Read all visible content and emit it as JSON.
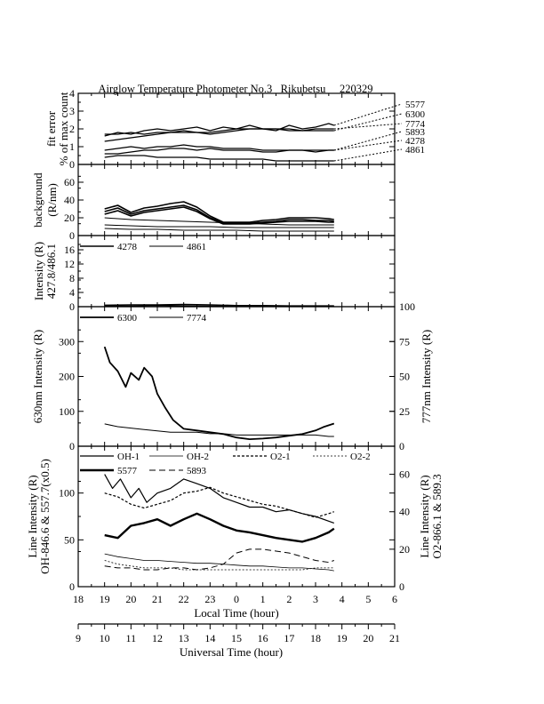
{
  "title": "Airglow Temperature Photometer No.3   Rikubetsu     220329",
  "chart_data": [
    {
      "type": "line",
      "panel": "fit-error",
      "ylabel": [
        "fit error",
        "% of max count"
      ],
      "ylim": [
        0,
        4
      ],
      "yticks": [
        "0",
        "1",
        "2",
        "3",
        "4"
      ],
      "series": [
        {
          "name": "5577",
          "x": [
            19.0,
            19.5,
            20.0,
            20.5,
            21.0,
            21.5,
            22.0,
            22.5,
            23.0,
            23.5,
            24.0,
            24.5,
            25.0,
            25.5,
            26.0,
            26.5,
            27.0,
            27.5,
            27.7
          ],
          "y": [
            1.6,
            1.8,
            1.7,
            1.9,
            2.0,
            1.9,
            2.0,
            2.1,
            1.9,
            2.1,
            2.0,
            2.2,
            2.0,
            1.9,
            2.2,
            2.0,
            2.1,
            2.3,
            2.2
          ]
        },
        {
          "name": "6300",
          "x": [
            19.0,
            19.5,
            20.0,
            20.5,
            21.0,
            21.5,
            22.0,
            22.5,
            23.0,
            23.5,
            24.0,
            24.5,
            25.0,
            25.5,
            26.0,
            26.5,
            27.0,
            27.5,
            27.7
          ],
          "y": [
            1.7,
            1.7,
            1.8,
            1.7,
            1.8,
            1.8,
            1.9,
            1.8,
            1.8,
            1.9,
            2.0,
            2.0,
            2.0,
            2.0,
            1.9,
            1.9,
            1.9,
            1.9,
            1.9
          ]
        },
        {
          "name": "7774",
          "x": [
            19.0,
            19.5,
            20.0,
            20.5,
            21.0,
            21.5,
            22.0,
            22.5,
            23.0,
            23.5,
            24.0,
            24.5,
            25.0,
            25.5,
            26.0,
            26.5,
            27.0,
            27.5,
            27.7
          ],
          "y": [
            1.3,
            1.4,
            1.5,
            1.6,
            1.7,
            1.8,
            1.8,
            1.8,
            1.7,
            1.8,
            1.9,
            2.0,
            2.0,
            2.0,
            2.0,
            1.9,
            2.0,
            2.0,
            2.0
          ]
        },
        {
          "name": "5893",
          "x": [
            19.0,
            19.5,
            20.0,
            20.5,
            21.0,
            21.5,
            22.0,
            22.5,
            23.0,
            23.5,
            24.0,
            24.5,
            25.0,
            25.5,
            26.0,
            26.5,
            27.0,
            27.5,
            27.7
          ],
          "y": [
            0.8,
            0.9,
            1.0,
            0.9,
            1.0,
            1.0,
            1.1,
            1.0,
            1.0,
            0.9,
            0.9,
            0.9,
            0.8,
            0.8,
            0.8,
            0.8,
            0.8,
            0.8,
            0.8
          ]
        },
        {
          "name": "4278",
          "x": [
            19.0,
            19.5,
            20.0,
            20.5,
            21.0,
            21.5,
            22.0,
            22.5,
            23.0,
            23.5,
            24.0,
            24.5,
            25.0,
            25.5,
            26.0,
            26.5,
            27.0,
            27.5,
            27.7
          ],
          "y": [
            0.6,
            0.6,
            0.7,
            0.8,
            0.8,
            0.9,
            0.9,
            0.8,
            0.9,
            0.8,
            0.8,
            0.8,
            0.7,
            0.7,
            0.8,
            0.8,
            0.7,
            0.8,
            0.8
          ]
        },
        {
          "name": "4861",
          "x": [
            19.0,
            19.5,
            20.0,
            20.5,
            21.0,
            21.5,
            22.0,
            22.5,
            23.0,
            23.5,
            24.0,
            24.5,
            25.0,
            25.5,
            26.0,
            26.5,
            27.0,
            27.5,
            27.7
          ],
          "y": [
            0.4,
            0.5,
            0.5,
            0.5,
            0.4,
            0.4,
            0.4,
            0.4,
            0.3,
            0.3,
            0.3,
            0.3,
            0.3,
            0.2,
            0.2,
            0.2,
            0.2,
            0.2,
            0.2
          ]
        }
      ]
    },
    {
      "type": "line",
      "panel": "background",
      "ylabel": [
        "background",
        "(R/nm)"
      ],
      "ylim": [
        0,
        80
      ],
      "yticks": [
        "0",
        "20",
        "40",
        "60"
      ],
      "series": [
        {
          "x": [
            19.0,
            19.5,
            20.0,
            20.5,
            21.0,
            21.5,
            22.0,
            22.5,
            23.0,
            23.5,
            24.0,
            24.5,
            25.0,
            25.5,
            26.0,
            26.5,
            27.0,
            27.5,
            27.7
          ],
          "y": [
            30,
            34,
            26,
            31,
            33,
            36,
            38,
            32,
            22,
            15,
            15,
            15,
            17,
            18,
            20,
            20,
            20,
            19,
            18
          ]
        },
        {
          "x": [
            19.0,
            19.5,
            20.0,
            20.5,
            21.0,
            21.5,
            22.0,
            22.5,
            23.0,
            23.5,
            24.0,
            24.5,
            25.0,
            25.5,
            26.0,
            26.5,
            27.0,
            27.5,
            27.7
          ],
          "y": [
            27,
            31,
            24,
            28,
            30,
            32,
            34,
            29,
            20,
            14,
            14,
            14,
            15,
            16,
            18,
            18,
            17,
            17,
            16
          ]
        },
        {
          "x": [
            19.0,
            19.5,
            20.0,
            20.5,
            21.0,
            21.5,
            22.0,
            22.5,
            23.0,
            23.5,
            24.0,
            24.5,
            25.0,
            25.5,
            26.0,
            26.5,
            27.0,
            27.5,
            27.7
          ],
          "y": [
            24,
            28,
            22,
            26,
            28,
            30,
            32,
            27,
            19,
            13,
            13,
            13,
            14,
            15,
            16,
            16,
            16,
            15,
            15
          ]
        },
        {
          "x": [
            19.0,
            20.0,
            21.0,
            22.0,
            23.0,
            24.0,
            25.0,
            26.0,
            27.0,
            27.7
          ],
          "y": [
            20,
            18,
            17,
            16,
            15,
            14,
            13,
            12,
            12,
            12
          ]
        },
        {
          "x": [
            19.0,
            20.0,
            21.0,
            22.0,
            23.0,
            24.0,
            25.0,
            26.0,
            27.0,
            27.7
          ],
          "y": [
            12,
            11,
            10,
            10,
            10,
            9,
            9,
            9,
            9,
            9
          ]
        },
        {
          "x": [
            19.0,
            20.0,
            21.0,
            22.0,
            23.0,
            24.0,
            25.0,
            26.0,
            27.0,
            27.7
          ],
          "y": [
            8,
            7,
            7,
            6,
            6,
            6,
            5,
            5,
            5,
            5
          ]
        }
      ]
    },
    {
      "type": "line",
      "panel": "blue-lines",
      "ylabel": [
        "Intensity (R)",
        "427.8/486.1"
      ],
      "ylim": [
        0,
        20
      ],
      "yticks": [
        "0",
        "4",
        "8",
        "12",
        "16"
      ],
      "series": [
        {
          "name": "4278",
          "x": [
            19.0,
            20.0,
            21.0,
            22.0,
            23.0,
            24.0,
            25.0,
            26.0,
            27.0,
            27.7
          ],
          "y": [
            0.4,
            0.5,
            0.5,
            0.6,
            0.5,
            0.3,
            0.3,
            0.2,
            0.2,
            0.2
          ]
        },
        {
          "name": "4861",
          "x": [
            19.0,
            20.0,
            21.0,
            22.0,
            23.0,
            24.0,
            25.0,
            26.0,
            27.0,
            27.7
          ],
          "y": [
            0.2,
            0.2,
            0.3,
            0.2,
            0.2,
            0.1,
            0.1,
            0.1,
            0.1,
            0.1
          ]
        }
      ]
    },
    {
      "type": "line",
      "panel": "oi-red-ir",
      "ylabel": "630nm Intensity (R)",
      "ylim": [
        0,
        400
      ],
      "yticks": [
        "0",
        "100",
        "200",
        "300"
      ],
      "y2label": "777nm Intensity (R)",
      "y2lim": [
        0,
        100
      ],
      "y2ticks": [
        "0",
        "25",
        "50",
        "75",
        "100"
      ],
      "series": [
        {
          "name": "6300",
          "axis": "left",
          "x": [
            19.0,
            19.2,
            19.5,
            19.8,
            20.0,
            20.3,
            20.5,
            20.8,
            21.0,
            21.3,
            21.6,
            22.0,
            22.5,
            23.0,
            23.5,
            24.0,
            24.5,
            25.0,
            25.5,
            26.0,
            26.5,
            27.0,
            27.3,
            27.7
          ],
          "y": [
            285,
            240,
            215,
            170,
            210,
            190,
            225,
            200,
            150,
            110,
            75,
            50,
            45,
            40,
            35,
            25,
            20,
            22,
            25,
            30,
            35,
            45,
            55,
            65
          ]
        },
        {
          "name": "7774",
          "axis": "right",
          "x": [
            19.0,
            19.5,
            20.0,
            20.5,
            21.0,
            21.5,
            22.0,
            22.5,
            23.0,
            23.5,
            24.0,
            24.5,
            25.0,
            25.5,
            26.0,
            26.5,
            27.0,
            27.5,
            27.7
          ],
          "y": [
            16,
            14,
            13,
            12,
            11,
            10,
            10,
            10,
            9,
            9,
            8,
            8,
            8,
            8,
            8,
            8,
            8,
            7,
            7
          ]
        }
      ]
    },
    {
      "type": "line",
      "panel": "oh-o2",
      "ylabel": [
        "Line Intensity (R)",
        "OH-846.6 & 557.7(x0.5)"
      ],
      "ylim": [
        0,
        150
      ],
      "yticks": [
        "0",
        "50",
        "100"
      ],
      "y2label": [
        "Line Intensity (R)",
        "O2-866.1 & 589.3"
      ],
      "y2lim": [
        0,
        75
      ],
      "y2ticks": [
        "0",
        "20",
        "40",
        "60"
      ],
      "xlabel": "Local Time (hour)",
      "xlim": [
        18,
        30
      ],
      "xticks": [
        "18",
        "19",
        "20",
        "21",
        "22",
        "23",
        "0",
        "1",
        "2",
        "3",
        "4",
        "5",
        "6"
      ],
      "x2label": "Universal Time (hour)",
      "x2ticks": [
        "9",
        "10",
        "11",
        "12",
        "13",
        "14",
        "15",
        "16",
        "17",
        "18",
        "19",
        "20",
        "21"
      ],
      "series": [
        {
          "name": "OH-1",
          "axis": "left",
          "x": [
            19.0,
            19.3,
            19.6,
            20.0,
            20.3,
            20.6,
            21.0,
            21.5,
            22.0,
            22.5,
            23.0,
            23.5,
            24.0,
            24.5,
            25.0,
            25.5,
            26.0,
            26.5,
            27.0,
            27.5,
            27.7
          ],
          "y": [
            120,
            105,
            115,
            95,
            105,
            90,
            100,
            105,
            115,
            110,
            105,
            95,
            90,
            85,
            85,
            80,
            82,
            78,
            75,
            70,
            68
          ]
        },
        {
          "name": "OH-2",
          "axis": "left",
          "x": [
            19.0,
            19.5,
            20.0,
            20.5,
            21.0,
            21.5,
            22.0,
            22.5,
            23.0,
            23.5,
            24.0,
            24.5,
            25.0,
            25.5,
            26.0,
            26.5,
            27.0,
            27.5,
            27.7
          ],
          "y": [
            35,
            32,
            30,
            28,
            28,
            27,
            26,
            25,
            25,
            24,
            23,
            22,
            22,
            21,
            20,
            20,
            19,
            18,
            17
          ]
        },
        {
          "name": "O2-1",
          "axis": "right",
          "x": [
            19.0,
            19.5,
            20.0,
            20.5,
            21.0,
            21.5,
            22.0,
            22.5,
            23.0,
            23.5,
            24.0,
            24.5,
            25.0,
            25.5,
            26.0,
            26.5,
            27.0,
            27.5,
            27.7
          ],
          "y": [
            50,
            48,
            44,
            42,
            44,
            46,
            50,
            51,
            53,
            50,
            48,
            46,
            44,
            43,
            41,
            39,
            37,
            39,
            40
          ]
        },
        {
          "name": "O2-2",
          "axis": "right",
          "x": [
            19.0,
            19.5,
            20.0,
            20.5,
            21.0,
            21.5,
            22.0,
            22.5,
            23.0,
            23.5,
            24.0,
            24.5,
            25.0,
            25.5,
            26.0,
            26.5,
            27.0,
            27.5,
            27.7
          ],
          "y": [
            14,
            12,
            11,
            10,
            10,
            10,
            9,
            9,
            9,
            9,
            9,
            9,
            9,
            9,
            9,
            9,
            10,
            10,
            10
          ]
        },
        {
          "name": "5577",
          "axis": "left",
          "x": [
            19.0,
            19.5,
            20.0,
            20.5,
            21.0,
            21.5,
            22.0,
            22.5,
            23.0,
            23.5,
            24.0,
            24.5,
            25.0,
            25.5,
            26.0,
            26.5,
            27.0,
            27.5,
            27.7
          ],
          "y": [
            55,
            52,
            65,
            68,
            72,
            65,
            72,
            78,
            72,
            65,
            60,
            58,
            55,
            52,
            50,
            48,
            52,
            58,
            62
          ]
        },
        {
          "name": "5893",
          "axis": "right",
          "x": [
            19.0,
            19.5,
            20.0,
            20.5,
            21.0,
            21.5,
            22.0,
            22.5,
            23.0,
            23.5,
            24.0,
            24.5,
            25.0,
            25.5,
            26.0,
            26.5,
            27.0,
            27.5,
            27.7
          ],
          "y": [
            11,
            10,
            10,
            9,
            9,
            10,
            10,
            9,
            10,
            12,
            18,
            20,
            20,
            19,
            18,
            16,
            14,
            13,
            14
          ]
        }
      ]
    }
  ]
}
